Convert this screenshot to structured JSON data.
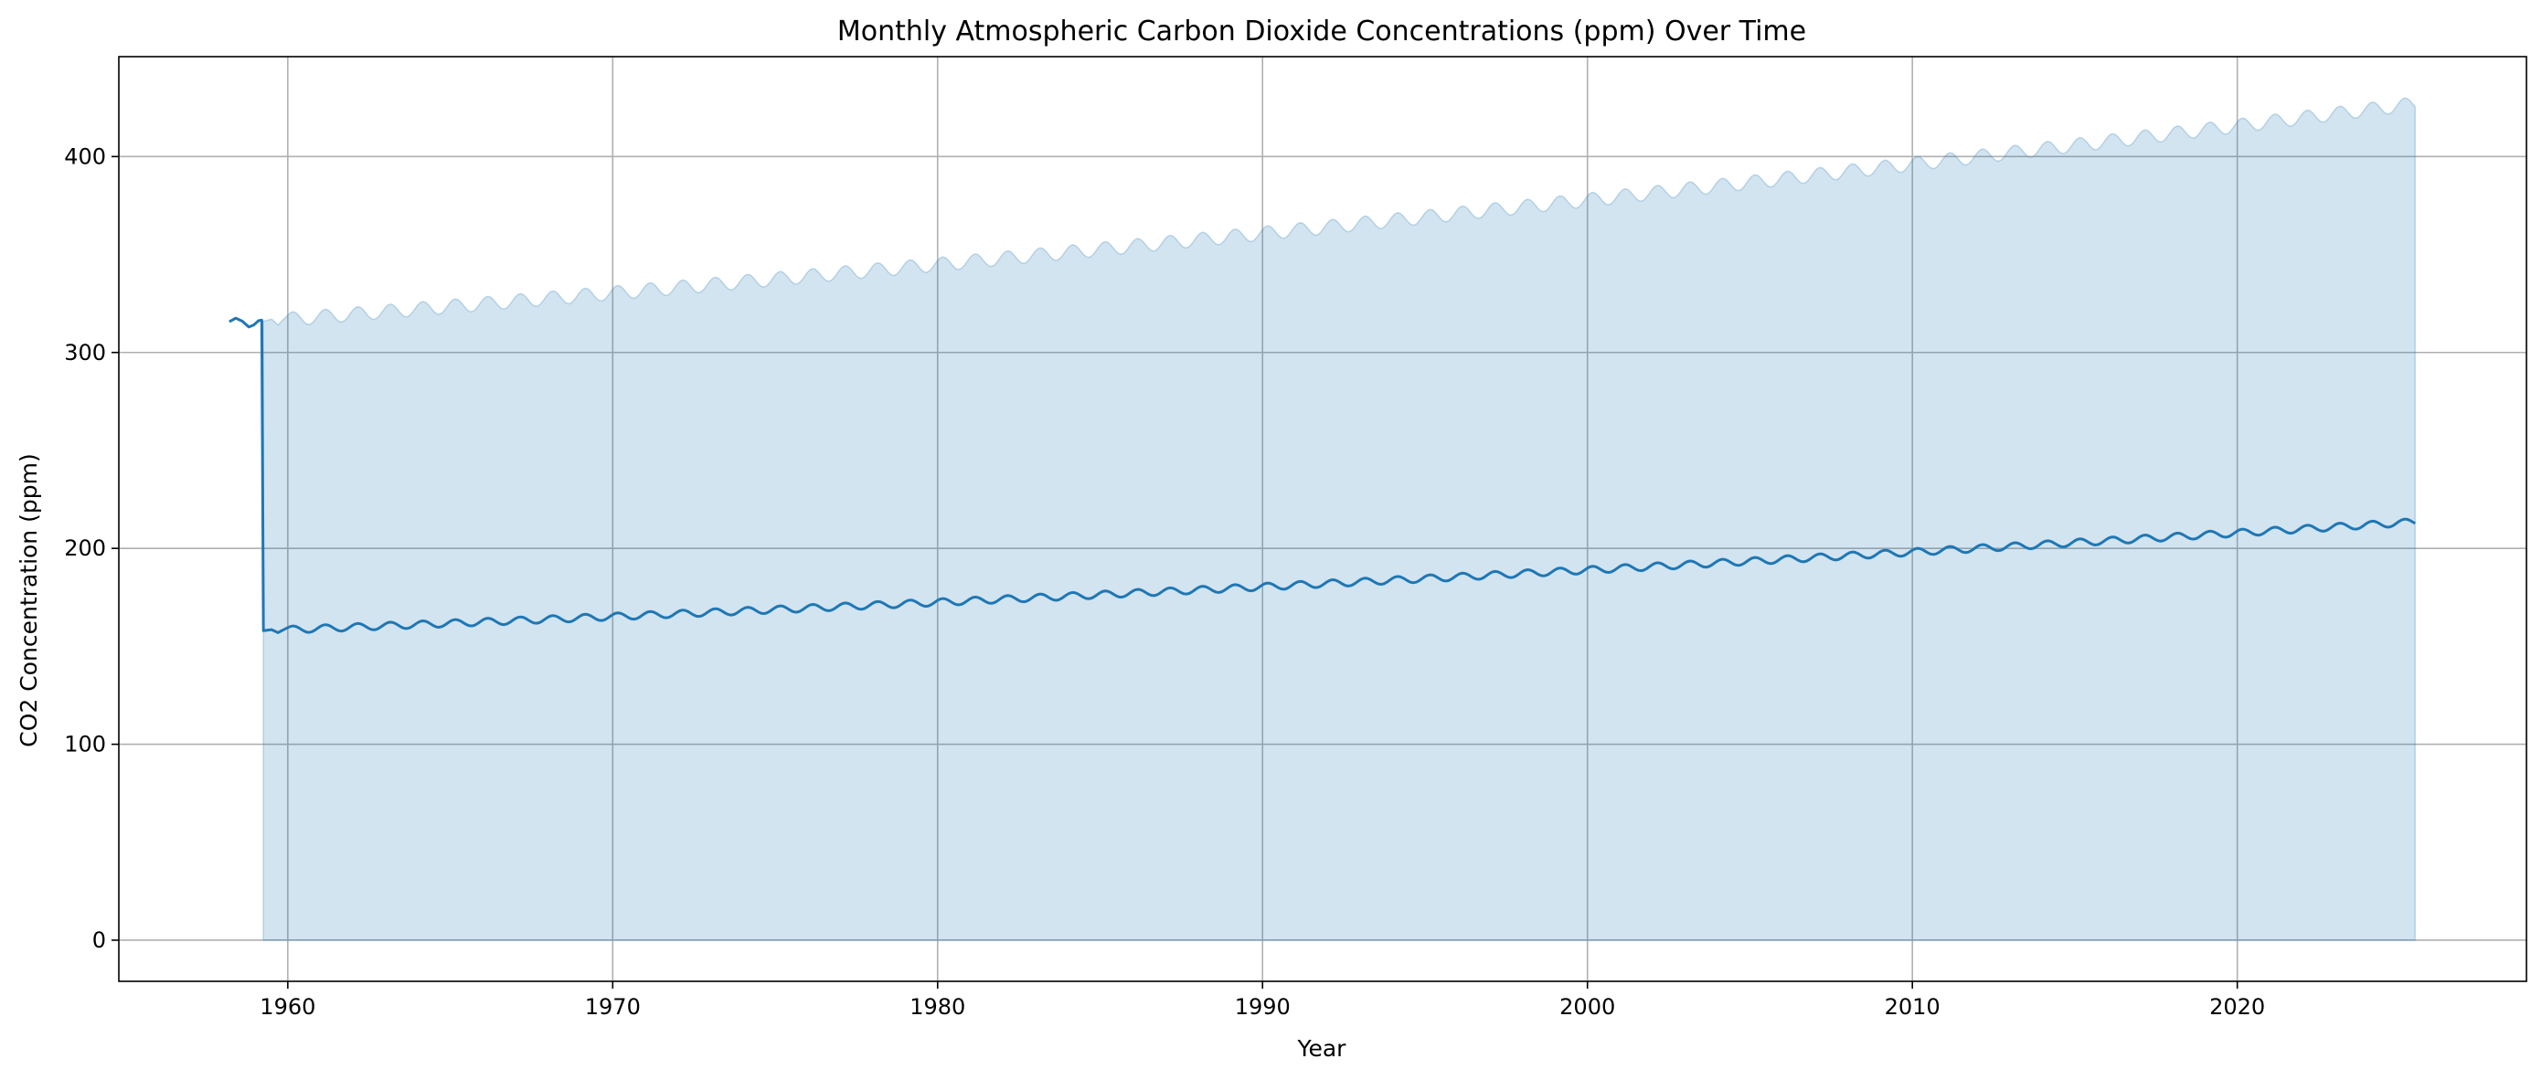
{
  "chart_data": {
    "type": "line",
    "title": "Monthly Atmospheric Carbon Dioxide Concentrations (ppm) Over Time",
    "xlabel": "Year",
    "ylabel": "CO2 Concentration (ppm)",
    "xlim": [
      1954.8,
      2028.9
    ],
    "ylim": [
      -21,
      451
    ],
    "xticks": [
      1960,
      1970,
      1980,
      1990,
      2000,
      2010,
      2020
    ],
    "yticks": [
      0,
      100,
      200,
      300,
      400
    ],
    "grid": true,
    "legend": "none",
    "colors": {
      "line": "#1f77b4",
      "band": "#1f77b4",
      "grid": "#b0b0b0"
    },
    "series": [
      {
        "points": [
          [
            1958.2,
            315.7
          ],
          [
            1958.4,
            317.5
          ],
          [
            1958.6,
            316.0
          ],
          [
            1958.8,
            313.0
          ],
          [
            1958.95,
            314.0
          ],
          [
            1959.1,
            316.2
          ],
          [
            1959.2,
            316.5
          ],
          [
            1959.25,
            158.0
          ],
          [
            1959.5,
            158.5
          ],
          [
            1959.7,
            157.0
          ],
          [
            1959.85,
            158.3
          ]
        ],
        "periodic": {
          "x_start": 1960.0,
          "x_end": 2025.5,
          "step": 0.0833,
          "base_at_start": 158.5,
          "base_at_end": 213.5,
          "seasonal_amplitude": 1.8,
          "trend_quadratic": 0.0031
        }
      }
    ],
    "band": {
      "x_start": 1959.2,
      "x_end": 2025.5,
      "upper": "2 x line value",
      "lower": 0
    }
  }
}
